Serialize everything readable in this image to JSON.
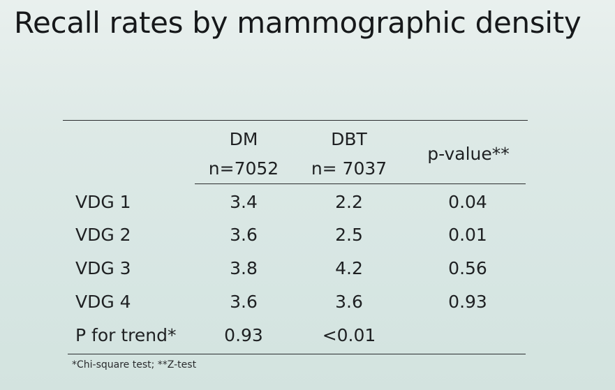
{
  "title": "Recall rates by mammographic density",
  "table": {
    "headers": {
      "dm": {
        "name": "DM",
        "n": "n=7052"
      },
      "dbt": {
        "name": "DBT",
        "n": "n= 7037"
      },
      "pvalue": "p-value**"
    },
    "rows": [
      {
        "label": "VDG 1",
        "dm": "3.4",
        "dbt": "2.2",
        "pvalue": "0.04"
      },
      {
        "label": "VDG 2",
        "dm": "3.6",
        "dbt": "2.5",
        "pvalue": "0.01"
      },
      {
        "label": "VDG 3",
        "dm": "3.8",
        "dbt": "4.2",
        "pvalue": "0.56"
      },
      {
        "label": "VDG 4",
        "dm": "3.6",
        "dbt": "3.6",
        "pvalue": "0.93"
      },
      {
        "label": "P for trend*",
        "dm": "0.93",
        "dbt": "<0.01",
        "pvalue": ""
      }
    ]
  },
  "footnote": "*Chi-square test; **Z-test"
}
